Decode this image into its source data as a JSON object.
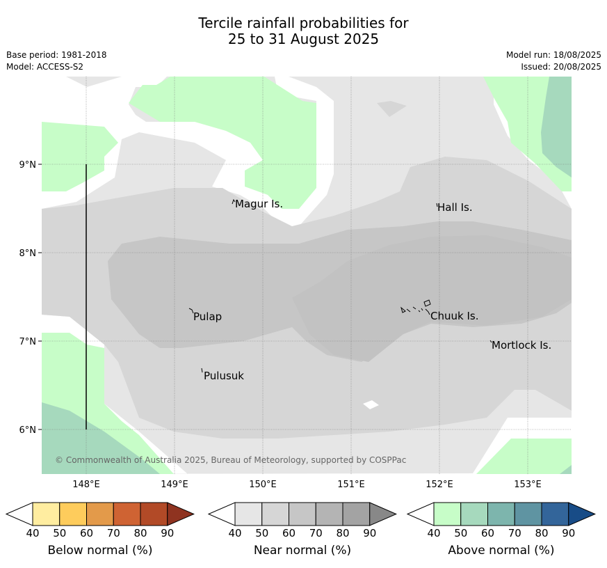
{
  "header": {
    "title_line1": "Tercile rainfall probabilities for",
    "title_line2": "25 to 31 August 2025",
    "base_period": "Base period: 1981-2018",
    "model": "Model: ACCESS-S2",
    "model_run": "Model run: 18/08/2025",
    "issued": "Issued: 20/08/2025"
  },
  "map": {
    "lat_labels": [
      "9°N",
      "8°N",
      "7°N",
      "6°N"
    ],
    "lon_labels": [
      "148°E",
      "149°E",
      "150°E",
      "151°E",
      "152°E",
      "153°E"
    ],
    "places": [
      "Magur Is.",
      "Hall Is.",
      "Pulap",
      "Chuuk Is.",
      "Mortlock Is.",
      "Pulusuk"
    ],
    "copyright": "© Commonwealth of Australia 2025, Bureau of Meteorology, supported by COSPPac"
  },
  "legend": {
    "below": {
      "title": "Below normal (%)",
      "ticks": [
        "40",
        "50",
        "60",
        "70",
        "80",
        "90"
      ],
      "colors": [
        "#ffeda0",
        "#fecc5c",
        "#e39a4a",
        "#cf6333",
        "#b24a27",
        "#8f3320"
      ]
    },
    "near": {
      "title": "Near normal (%)",
      "ticks": [
        "40",
        "50",
        "60",
        "70",
        "80",
        "90"
      ],
      "colors": [
        "#e6e6e6",
        "#d6d6d6",
        "#c6c6c6",
        "#b4b4b4",
        "#a3a3a3",
        "#888888"
      ]
    },
    "above": {
      "title": "Above normal (%)",
      "ticks": [
        "40",
        "50",
        "60",
        "70",
        "80",
        "90"
      ],
      "colors": [
        "#c7fdc8",
        "#a6d9bd",
        "#7db5ad",
        "#5f94a2",
        "#33659a",
        "#184c87"
      ]
    }
  }
}
